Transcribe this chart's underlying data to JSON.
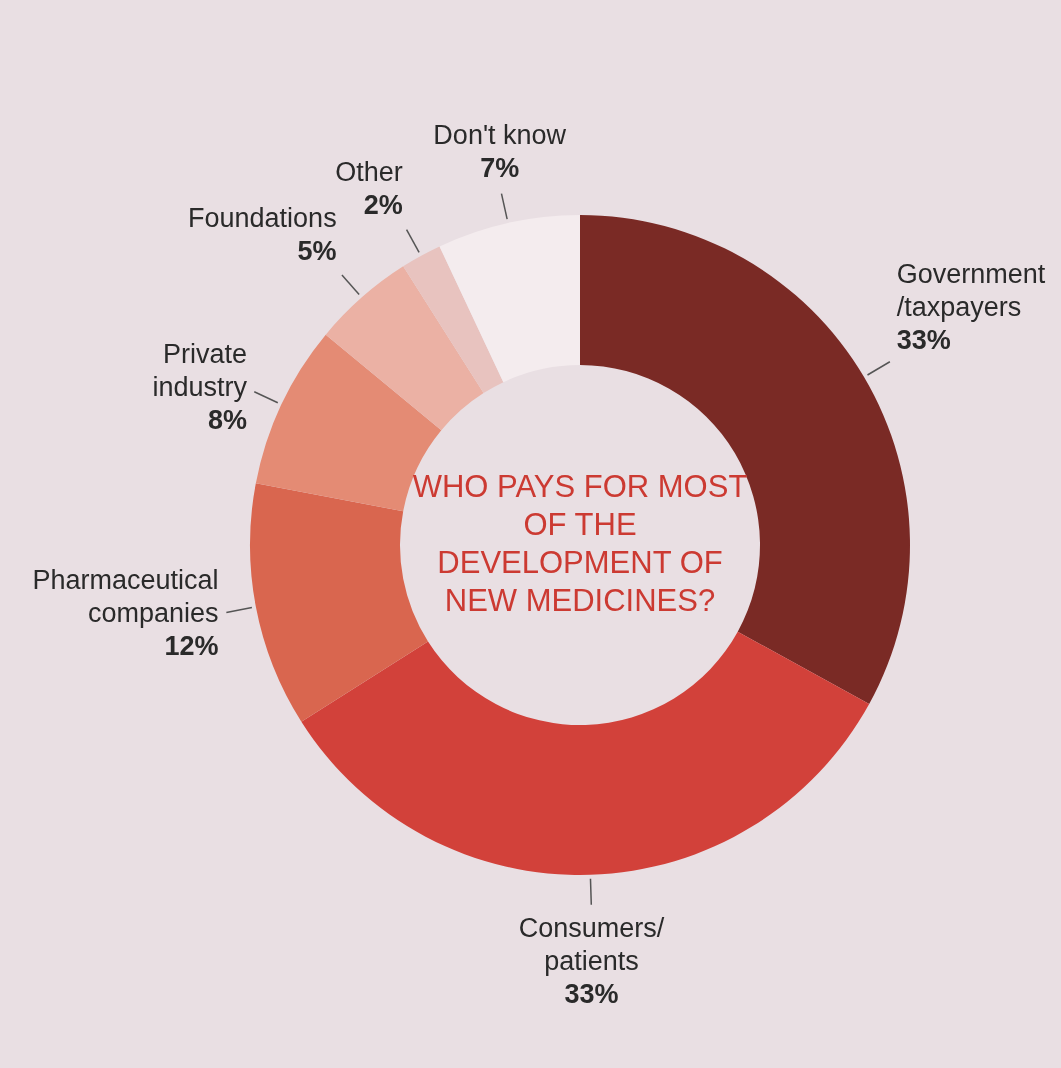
{
  "chart_data": {
    "type": "donut",
    "title": "WHO PAYS FOR MOST OF THE DEVELOPMENT OF NEW MEDICINES?",
    "categories": [
      "Government /taxpayers",
      "Consumers/ patients",
      "Pharmaceutical companies",
      "Private industry",
      "Foundations",
      "Other",
      "Don't know"
    ],
    "values": [
      33,
      33,
      12,
      8,
      5,
      2,
      7
    ],
    "value_labels": [
      "33%",
      "33%",
      "12%",
      "8%",
      "5%",
      "2%",
      "7%"
    ],
    "colors": [
      "#7a2a25",
      "#d2413a",
      "#d9664f",
      "#e48b74",
      "#ebb1a4",
      "#e8c3bf",
      "#f4ecee"
    ]
  }
}
